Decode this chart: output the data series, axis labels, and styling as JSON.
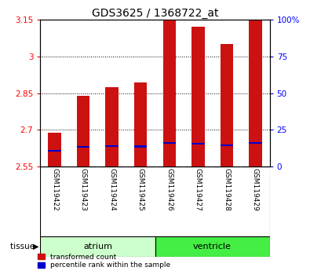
{
  "title": "GDS3625 / 1368722_at",
  "samples": [
    "GSM119422",
    "GSM119423",
    "GSM119424",
    "GSM119425",
    "GSM119426",
    "GSM119427",
    "GSM119428",
    "GSM119429"
  ],
  "red_values": [
    2.69,
    2.84,
    2.875,
    2.895,
    3.15,
    3.12,
    3.05,
    3.15
  ],
  "blue_values": [
    2.615,
    2.63,
    2.635,
    2.633,
    2.648,
    2.645,
    2.638,
    2.648
  ],
  "ymin": 2.55,
  "ymax": 3.15,
  "yticks": [
    2.55,
    2.7,
    2.85,
    3.0,
    3.15
  ],
  "ytick_labels": [
    "2.55",
    "2.7",
    "2.85",
    "3",
    "3.15"
  ],
  "right_yticks": [
    0,
    25,
    50,
    75,
    100
  ],
  "right_ytick_labels": [
    "0",
    "25",
    "50",
    "75",
    "100%"
  ],
  "bar_color": "#cc1111",
  "blue_color": "#0000cc",
  "bar_width": 0.45,
  "background_color": "#ffffff",
  "title_fontsize": 10,
  "tick_fontsize": 7.5,
  "sample_fontsize": 6.5,
  "atrium_color": "#ccffcc",
  "ventricle_color": "#44ee44",
  "xlabel_bg": "#cccccc",
  "blue_bar_height": 0.007
}
